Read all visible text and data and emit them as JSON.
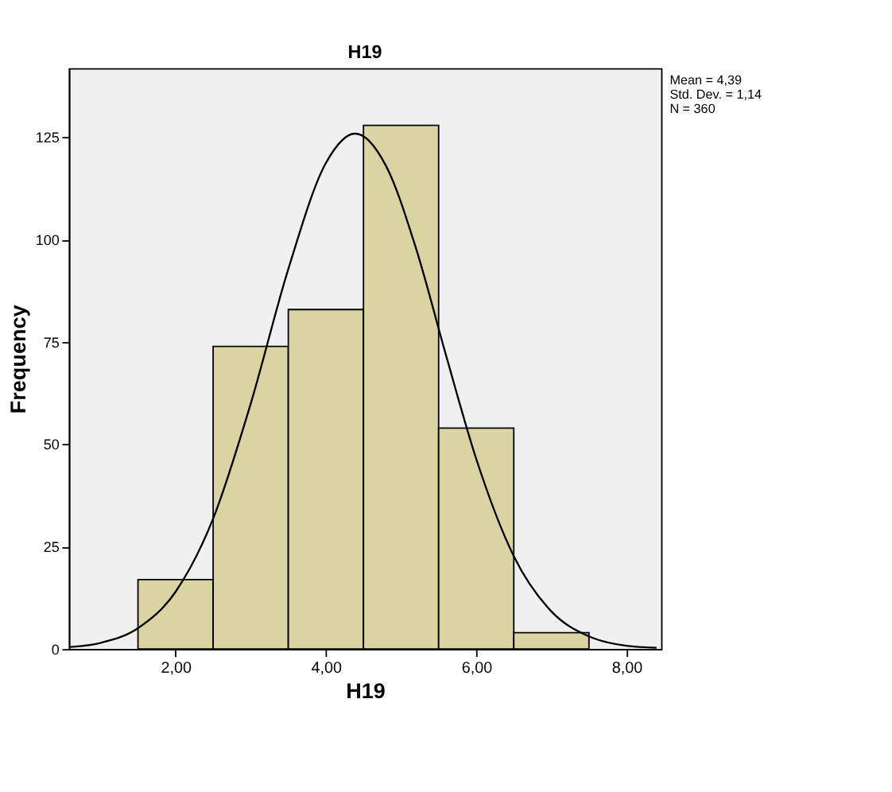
{
  "chart_data": {
    "type": "histogram",
    "title": "H19",
    "xlabel": "H19",
    "ylabel": "Frequency",
    "bins": [
      1.5,
      2.5,
      3.5,
      4.5,
      5.5,
      6.5,
      7.5
    ],
    "values": [
      17,
      74,
      83,
      128,
      54,
      4
    ],
    "color": "#d9d4a1",
    "series": [
      {
        "type": "line",
        "color": "#000000",
        "x": [
          0.6,
          1.0,
          1.5,
          2.0,
          2.5,
          3.0,
          3.5,
          4.0,
          4.39,
          4.8,
          5.2,
          5.6,
          6.0,
          6.5,
          7.0,
          7.5,
          8.0,
          8.4
        ],
        "values": [
          0.5,
          1.5,
          5.1,
          14.0,
          31.9,
          60.0,
          92.9,
          118.8,
          126.0,
          118.1,
          97.9,
          71.7,
          46.5,
          22.7,
          9.2,
          3.1,
          0.8,
          0.3
        ]
      }
    ],
    "xlim": [
      0.58,
      8.46
    ],
    "xticks": [
      {
        "value": 2,
        "label": "2,00"
      },
      {
        "value": 4,
        "label": "4,00"
      },
      {
        "value": 6,
        "label": "6,00"
      },
      {
        "value": 8,
        "label": "8,00"
      }
    ],
    "ylim": [
      0,
      142
    ],
    "yticks": [
      0,
      25,
      50,
      75,
      100,
      125
    ],
    "grid": false,
    "annotations": [
      "Mean = 4,39",
      "Std. Dev. = 1,14",
      "N = 360"
    ]
  }
}
